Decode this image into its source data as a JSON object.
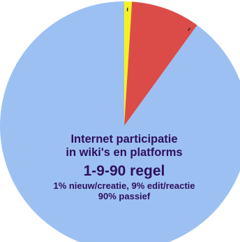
{
  "chart_data": {
    "type": "pie",
    "slices": [
      {
        "value": 1,
        "color": "#f2f223"
      },
      {
        "value": 9,
        "color": "#db4c48"
      },
      {
        "value": 90,
        "color": "#9cc0f2"
      }
    ],
    "start": "top",
    "direction": "clockwise",
    "legend": "none",
    "text": {
      "line1": "Internet participatie",
      "line2": "in wiki's en platforms",
      "line3": "1-9-90 regel",
      "line4": "1% nieuw/creatie, 9% edit/reactie",
      "line5": "90% passief"
    }
  },
  "colors": {
    "text": "#2e0f5e",
    "background": "#ffffff"
  }
}
